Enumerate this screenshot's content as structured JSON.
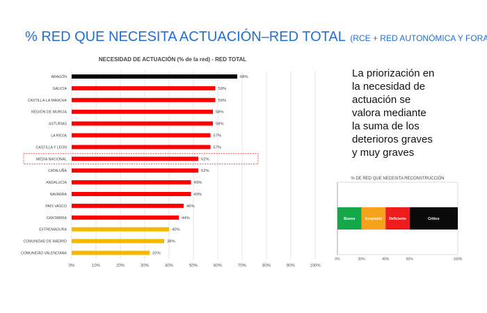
{
  "slide": {
    "title": "% RED QUE NECESITA ACTUACIÓN–RED TOTAL",
    "subtitle": "(RCE + RED AUTONÓMICA Y FORAL)",
    "side_text_lines": [
      "La priorización en",
      "la necesidad de",
      "actuación se",
      "valora mediante",
      "la suma de los",
      "deterioros graves",
      "y muy graves"
    ]
  },
  "chart_data": [
    {
      "type": "bar",
      "orientation": "horizontal",
      "title": "NECESIDAD DE ACTUACIÓN (% de la red)  - RED TOTAL",
      "xlim": [
        0,
        100
      ],
      "x_ticks": [
        "0%",
        "10%",
        "20%",
        "30%",
        "40%",
        "50%",
        "60%",
        "70%",
        "80%",
        "90%",
        "100%"
      ],
      "grid": true,
      "categories": [
        "ARAGÓN",
        "GALICIA",
        "CASTILLA-LA MANCHA",
        "REGIÓN DE MURCIA",
        "ASTURIAS",
        "LA RIOJA",
        "CASTILLA Y LEON",
        "MEDIA NACIONAL",
        "CATALUÑA",
        "ANDALUCÍA",
        "NAVARRA",
        "PAÍS VASCO",
        "CANTABRIA",
        "EXTREMADURA",
        "COMUNIDAD DE MADRID",
        "COMUNIDAD VALENCIANA"
      ],
      "values": [
        68,
        59,
        59,
        58,
        58,
        57,
        57,
        52,
        52,
        49,
        49,
        46,
        44,
        40,
        38,
        32
      ],
      "value_labels": [
        "68%",
        "59%",
        "59%",
        "58%",
        "58%",
        "57%",
        "57%",
        "52%",
        "52%",
        "49%",
        "49%",
        "46%",
        "44%",
        "40%",
        "38%",
        "32%"
      ],
      "bar_colors": [
        "#000000",
        "#ff0000",
        "#ff0000",
        "#ff0000",
        "#ff0000",
        "#ff0000",
        "#ff0000",
        "#ff0000",
        "#ff0000",
        "#ff0000",
        "#ff0000",
        "#ff0000",
        "#ff0000",
        "#f5b800",
        "#f5b800",
        "#f5b800"
      ],
      "highlighted_category": "MEDIA NACIONAL",
      "highlight_color": "#e03030"
    },
    {
      "type": "bar",
      "orientation": "horizontal",
      "stacked": true,
      "title": "% DE RED QUE NECESITA RECONSTRUCCIÓN",
      "xlim": [
        0,
        100
      ],
      "x_ticks": [
        "0%",
        "20%",
        "40%",
        "60%",
        "100%"
      ],
      "segments": [
        {
          "label": "Bueno",
          "start": 0,
          "end": 20,
          "color": "#14a84a"
        },
        {
          "label": "Aceptable",
          "start": 20,
          "end": 40,
          "color": "#f6a21a"
        },
        {
          "label": "Deficiente",
          "start": 40,
          "end": 60,
          "color": "#ee1c1c"
        },
        {
          "label": "Crítico",
          "start": 60,
          "end": 100,
          "color": "#0a0a0a"
        }
      ]
    }
  ]
}
